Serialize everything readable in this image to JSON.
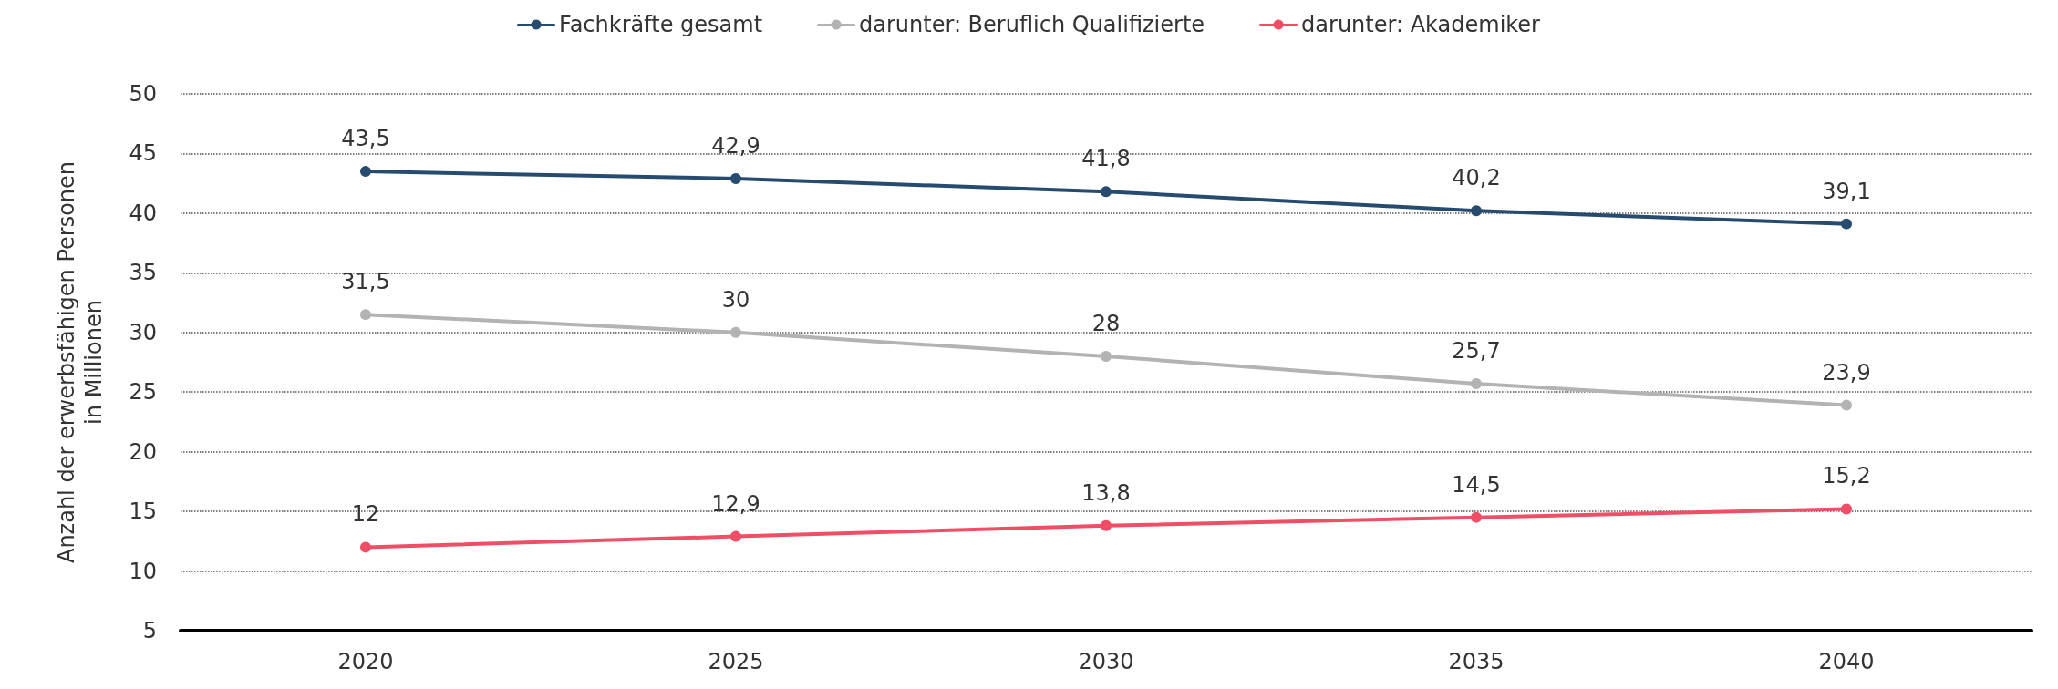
{
  "chart_data": {
    "type": "line",
    "ylabel": "Anzahl der erwerbsfähigen Personen\nin Millionen",
    "categories": [
      "2020",
      "2025",
      "2030",
      "2035",
      "2040"
    ],
    "series": [
      {
        "name": "Fachkräfte gesamt",
        "color": "#264b6e",
        "values": [
          43.5,
          42.9,
          41.8,
          40.2,
          39.1
        ],
        "value_labels": [
          "43,5",
          "42,9",
          "41,8",
          "40,2",
          "39,1"
        ]
      },
      {
        "name": "darunter: Beruflich Qualifizierte",
        "color": "#b3b3b3",
        "values": [
          31.5,
          30,
          28,
          25.7,
          23.9
        ],
        "value_labels": [
          "31,5",
          "30",
          "28",
          "25,7",
          "23,9"
        ]
      },
      {
        "name": "darunter: Akademiker",
        "color": "#ee4f66",
        "values": [
          12,
          12.9,
          13.8,
          14.5,
          15.2
        ],
        "value_labels": [
          "12",
          "12,9",
          "13,8",
          "14,5",
          "15,2"
        ]
      }
    ],
    "ylim": [
      5,
      50
    ],
    "yticks": [
      5,
      10,
      15,
      20,
      25,
      30,
      35,
      40,
      45,
      50
    ],
    "grid": "y",
    "legend": "top",
    "marker": "circle",
    "line_style": "solid"
  }
}
